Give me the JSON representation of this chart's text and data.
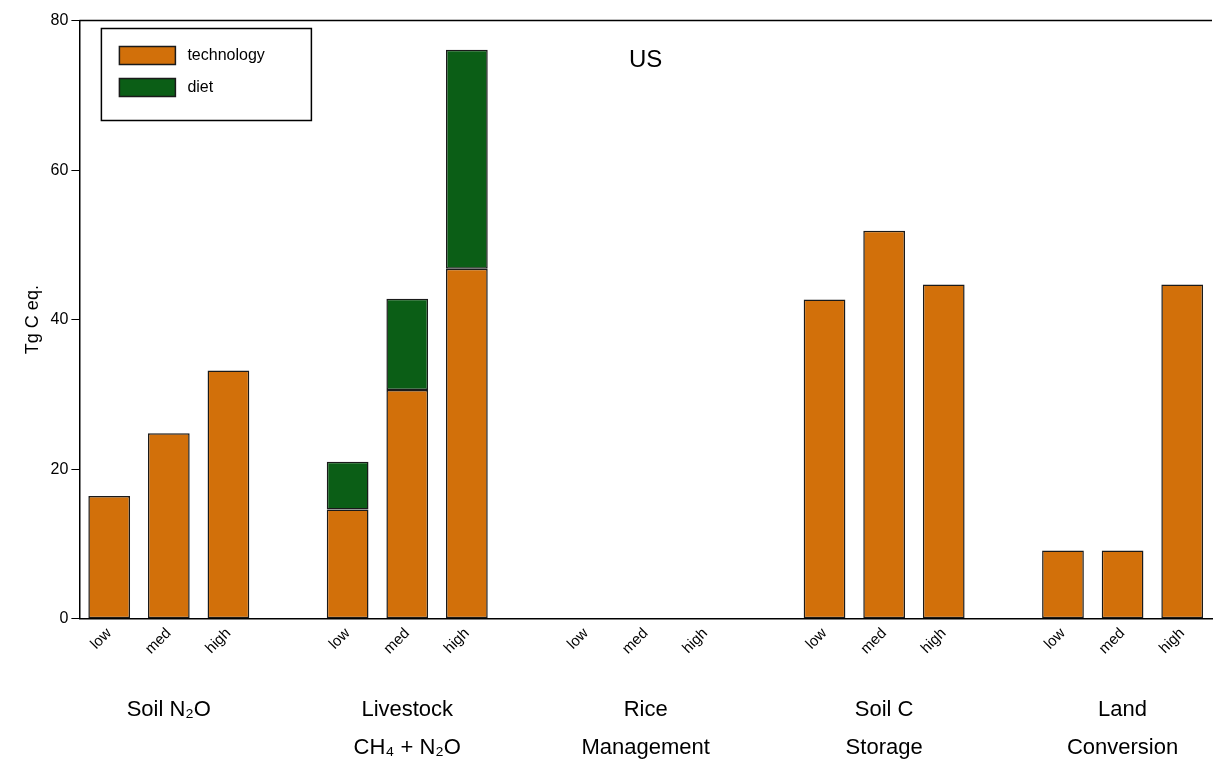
{
  "chart_data": {
    "type": "bar",
    "title": "US",
    "ylabel": "Tg C eq.",
    "stacked": true,
    "legend": "top left",
    "grid": false,
    "ylim": [
      0,
      80
    ],
    "yticks": [
      0,
      20,
      40,
      60,
      80
    ],
    "categories": [
      "low",
      "med",
      "high",
      null,
      "low",
      "med",
      "high",
      null,
      "low",
      "med",
      "high",
      null,
      "low",
      "med",
      "high",
      null,
      "low",
      "med",
      "high"
    ],
    "series": [
      {
        "name": "technology",
        "color": "#d2700a",
        "values": [
          16.4,
          24.8,
          33.2,
          null,
          14.6,
          30.6,
          46.8,
          null,
          0,
          0,
          0,
          null,
          42.7,
          51.9,
          44.7,
          null,
          9.1,
          9.1,
          44.7
        ]
      },
      {
        "name": "diet",
        "color": "#0b5e16",
        "values": [
          0,
          0,
          0,
          null,
          6.4,
          12.2,
          29.3,
          null,
          0,
          0,
          0,
          null,
          0,
          0,
          0,
          null,
          0,
          0,
          0
        ]
      }
    ],
    "annotations": [
      "Soil N₂O",
      "Livestock\nCH₄ + N₂O",
      "Rice\nManagement",
      "Soil C\nStorage",
      "Land\nConversion"
    ]
  }
}
